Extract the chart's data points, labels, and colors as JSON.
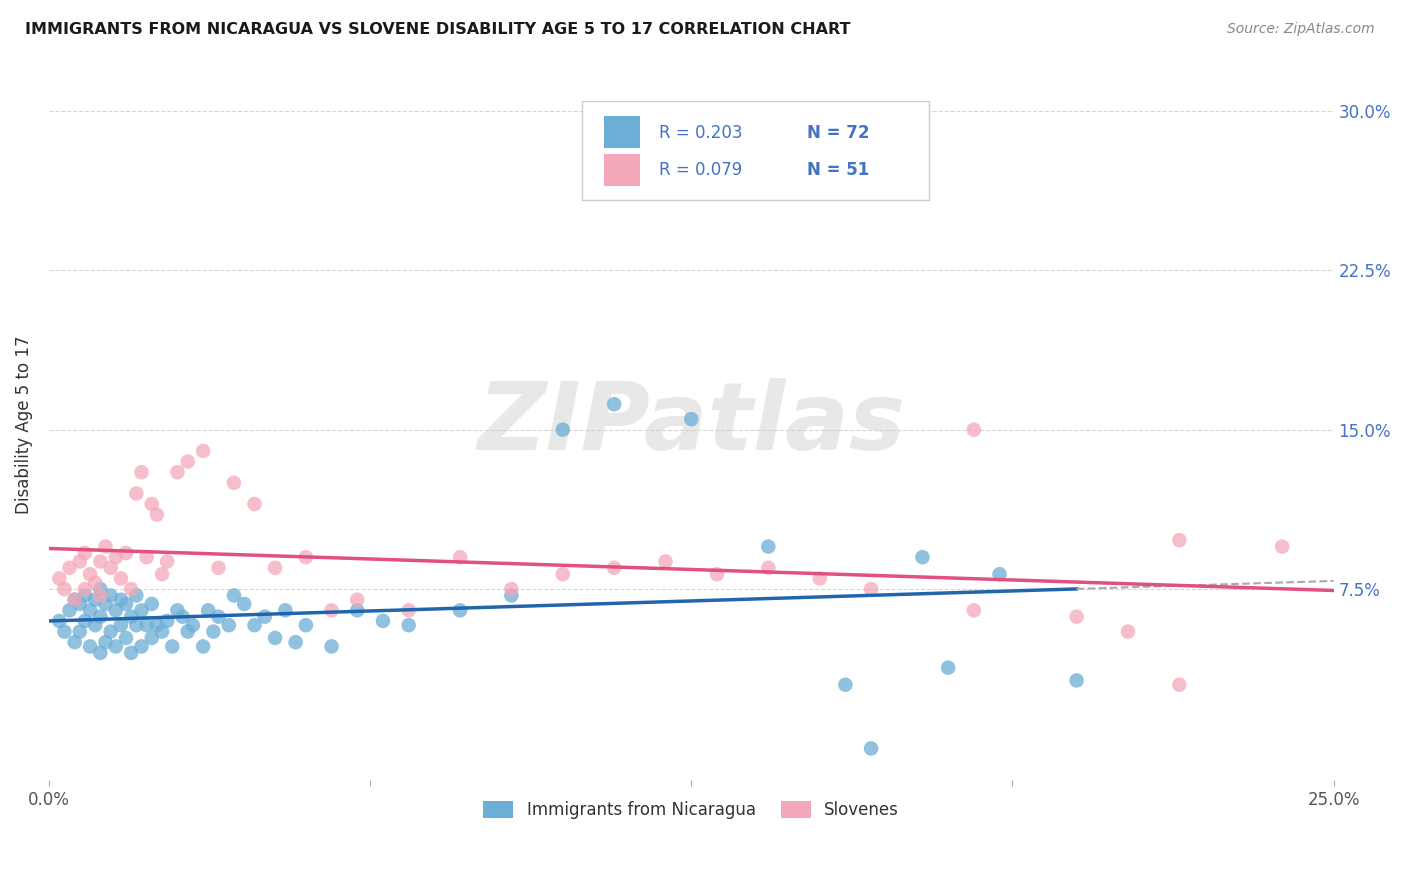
{
  "title": "IMMIGRANTS FROM NICARAGUA VS SLOVENE DISABILITY AGE 5 TO 17 CORRELATION CHART",
  "source": "Source: ZipAtlas.com",
  "ylabel_label": "Disability Age 5 to 17",
  "xlim": [
    0.0,
    0.25
  ],
  "ylim": [
    -0.015,
    0.32
  ],
  "yticks": [
    0.075,
    0.15,
    0.225,
    0.3
  ],
  "ytick_labels": [
    "7.5%",
    "15.0%",
    "22.5%",
    "30.0%"
  ],
  "xticks": [
    0.0,
    0.25
  ],
  "xtick_labels": [
    "0.0%",
    "25.0%"
  ],
  "legend_r1": "R = 0.203",
  "legend_n1": "N = 72",
  "legend_r2": "R = 0.079",
  "legend_n2": "N = 51",
  "color_blue": "#6baed6",
  "color_pink": "#f4a7b9",
  "color_line_blue": "#2166ac",
  "color_line_pink": "#e05080",
  "color_text_blue": "#4472c4",
  "color_rn_text": "#4472c4",
  "color_axis_right": "#4472c4",
  "background_color": "#ffffff",
  "grid_color": "#cccccc",
  "watermark_text": "ZIPatlas",
  "legend_bottom_1": "Immigrants from Nicaragua",
  "legend_bottom_2": "Slovenes",
  "blue_x": [
    0.002,
    0.003,
    0.004,
    0.005,
    0.005,
    0.006,
    0.006,
    0.007,
    0.007,
    0.008,
    0.008,
    0.009,
    0.009,
    0.01,
    0.01,
    0.01,
    0.011,
    0.011,
    0.012,
    0.012,
    0.013,
    0.013,
    0.014,
    0.014,
    0.015,
    0.015,
    0.016,
    0.016,
    0.017,
    0.017,
    0.018,
    0.018,
    0.019,
    0.02,
    0.02,
    0.021,
    0.022,
    0.023,
    0.024,
    0.025,
    0.026,
    0.027,
    0.028,
    0.03,
    0.031,
    0.032,
    0.033,
    0.035,
    0.036,
    0.038,
    0.04,
    0.042,
    0.044,
    0.046,
    0.048,
    0.05,
    0.055,
    0.06,
    0.065,
    0.07,
    0.08,
    0.09,
    0.1,
    0.11,
    0.125,
    0.14,
    0.155,
    0.17,
    0.185,
    0.2,
    0.16,
    0.175
  ],
  "blue_y": [
    0.06,
    0.055,
    0.065,
    0.05,
    0.07,
    0.055,
    0.068,
    0.06,
    0.072,
    0.048,
    0.065,
    0.058,
    0.07,
    0.045,
    0.062,
    0.075,
    0.05,
    0.068,
    0.055,
    0.072,
    0.048,
    0.065,
    0.058,
    0.07,
    0.052,
    0.068,
    0.045,
    0.062,
    0.058,
    0.072,
    0.048,
    0.065,
    0.058,
    0.052,
    0.068,
    0.058,
    0.055,
    0.06,
    0.048,
    0.065,
    0.062,
    0.055,
    0.058,
    0.048,
    0.065,
    0.055,
    0.062,
    0.058,
    0.072,
    0.068,
    0.058,
    0.062,
    0.052,
    0.065,
    0.05,
    0.058,
    0.048,
    0.065,
    0.06,
    0.058,
    0.065,
    0.072,
    0.15,
    0.162,
    0.155,
    0.095,
    0.03,
    0.09,
    0.082,
    0.032,
    0.0,
    0.038
  ],
  "pink_x": [
    0.002,
    0.003,
    0.004,
    0.005,
    0.006,
    0.007,
    0.007,
    0.008,
    0.009,
    0.01,
    0.01,
    0.011,
    0.012,
    0.013,
    0.014,
    0.015,
    0.016,
    0.017,
    0.018,
    0.019,
    0.02,
    0.021,
    0.022,
    0.023,
    0.025,
    0.027,
    0.03,
    0.033,
    0.036,
    0.04,
    0.044,
    0.05,
    0.055,
    0.06,
    0.07,
    0.08,
    0.09,
    0.1,
    0.11,
    0.12,
    0.13,
    0.14,
    0.15,
    0.16,
    0.18,
    0.2,
    0.22,
    0.24,
    0.22,
    0.21,
    0.18
  ],
  "pink_y": [
    0.08,
    0.075,
    0.085,
    0.07,
    0.088,
    0.075,
    0.092,
    0.082,
    0.078,
    0.088,
    0.072,
    0.095,
    0.085,
    0.09,
    0.08,
    0.092,
    0.075,
    0.12,
    0.13,
    0.09,
    0.115,
    0.11,
    0.082,
    0.088,
    0.13,
    0.135,
    0.14,
    0.085,
    0.125,
    0.115,
    0.085,
    0.09,
    0.065,
    0.07,
    0.065,
    0.09,
    0.075,
    0.082,
    0.085,
    0.088,
    0.082,
    0.085,
    0.08,
    0.075,
    0.065,
    0.062,
    0.03,
    0.095,
    0.098,
    0.055,
    0.15
  ]
}
